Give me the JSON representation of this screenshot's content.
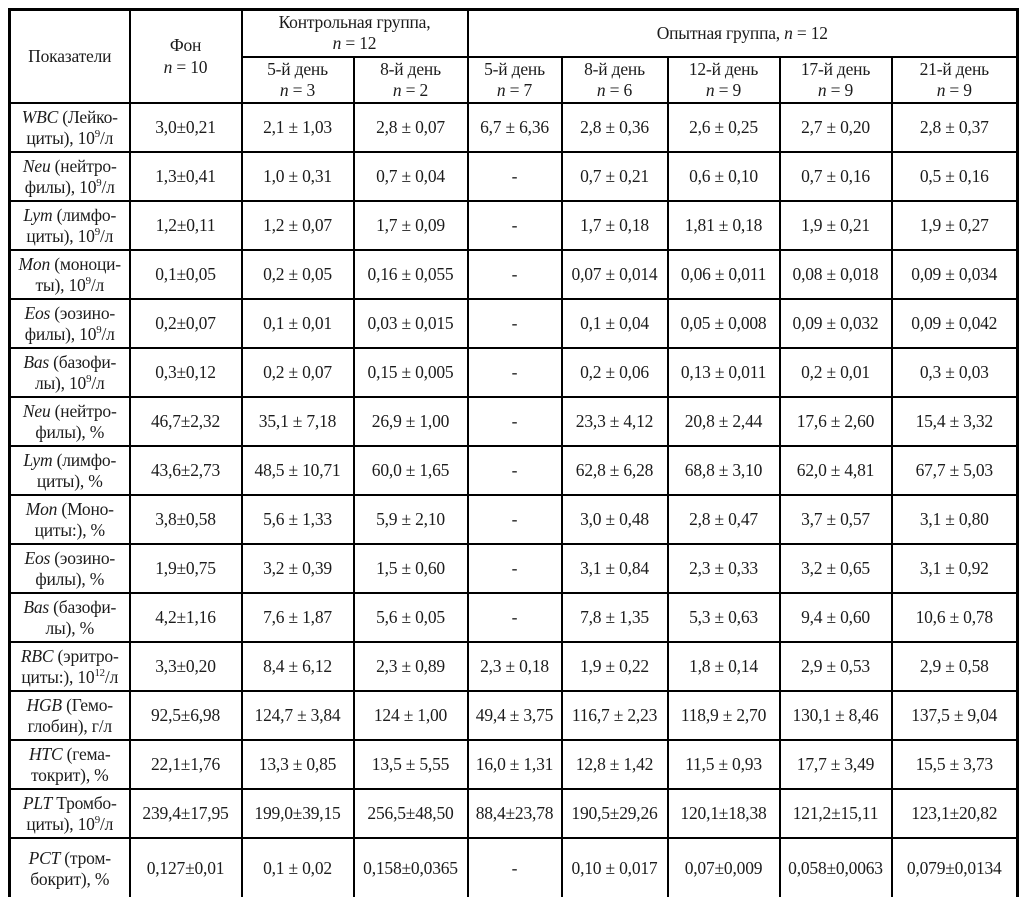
{
  "table": {
    "header": {
      "indicator_col": "Показатели",
      "fon_col": "Фон|{n} = 10",
      "control_group": "Контрольная группа,|{n} = 12",
      "experimental_group": "Опытная группа, {n} = 12",
      "control_subcols": [
        "5-й день|{n} = 3",
        "8-й день|{n} = 2"
      ],
      "experimental_subcols": [
        "5-й день|{n} = 7",
        "8-й день|{n} = 6",
        "12-й день|{n} = 9",
        "17-й день|{n} = 9",
        "21-й день|{n} = 9"
      ]
    },
    "rows": [
      {
        "label": "{WBC} (Лейко-|циты), 10^9^/л",
        "values": [
          "3,0±0,21",
          "2,1 ± 1,03",
          "2,8 ± 0,07",
          "6,7 ± 6,36",
          "2,8 ± 0,36",
          "2,6 ± 0,25",
          "2,7 ± 0,20",
          "2,8 ± 0,37"
        ]
      },
      {
        "label": "{Neu} (нейтро-|филы), 10^9^/л",
        "values": [
          "1,3±0,41",
          "1,0 ± 0,31",
          "0,7 ± 0,04",
          "-",
          "0,7 ± 0,21",
          "0,6 ± 0,10",
          "0,7 ± 0,16",
          "0,5 ± 0,16"
        ]
      },
      {
        "label": "{Lym} (лимфо-|циты), 10^9^/л",
        "values": [
          "1,2±0,11",
          "1,2 ± 0,07",
          "1,7 ± 0,09",
          "-",
          "1,7 ± 0,18",
          "1,81 ± 0,18",
          "1,9 ± 0,21",
          "1,9 ± 0,27"
        ]
      },
      {
        "label": "{Mon} (моноци-|ты), 10^9^/л",
        "values": [
          "0,1±0,05",
          "0,2 ± 0,05",
          "0,16 ± 0,055",
          "-",
          "0,07 ± 0,014",
          "0,06 ± 0,011",
          "0,08 ± 0,018",
          "0,09 ± 0,034"
        ]
      },
      {
        "label": "{Eos} (эозино-|филы), 10^9^/л",
        "values": [
          "0,2±0,07",
          "0,1 ± 0,01",
          "0,03 ± 0,015",
          "-",
          "0,1 ± 0,04",
          "0,05 ± 0,008",
          "0,09 ± 0,032",
          "0,09 ± 0,042"
        ]
      },
      {
        "label": "{Bas} (базофи-|лы), 10^9^/л",
        "values": [
          "0,3±0,12",
          "0,2 ± 0,07",
          "0,15 ± 0,005",
          "-",
          "0,2 ± 0,06",
          "0,13 ± 0,011",
          "0,2 ± 0,01",
          "0,3 ± 0,03"
        ]
      },
      {
        "label": "{Neu} (нейтро-|филы), %",
        "values": [
          "46,7±2,32",
          "35,1 ± 7,18",
          "26,9 ± 1,00",
          "-",
          "23,3 ± 4,12",
          "20,8 ± 2,44",
          "17,6 ± 2,60",
          "15,4 ± 3,32"
        ]
      },
      {
        "label": "{Lym} (лимфо-|циты), %",
        "values": [
          "43,6±2,73",
          "48,5 ± 10,71",
          "60,0 ± 1,65",
          "-",
          "62,8 ± 6,28",
          "68,8 ± 3,10",
          "62,0 ± 4,81",
          "67,7 ± 5,03"
        ]
      },
      {
        "label": "{Mon} (Моно-|циты:), %",
        "values": [
          "3,8±0,58",
          "5,6 ± 1,33",
          "5,9 ± 2,10",
          "-",
          "3,0 ± 0,48",
          "2,8 ± 0,47",
          "3,7 ± 0,57",
          "3,1 ± 0,80"
        ]
      },
      {
        "label": "{Eos} (эозино-|филы), %",
        "values": [
          "1,9±0,75",
          "3,2 ± 0,39",
          "1,5 ± 0,60",
          "-",
          "3,1 ± 0,84",
          "2,3 ± 0,33",
          "3,2 ± 0,65",
          "3,1 ± 0,92"
        ]
      },
      {
        "label": "{Bas} (базофи-|лы), %",
        "values": [
          "4,2±1,16",
          "7,6 ± 1,87",
          "5,6 ± 0,05",
          "-",
          "7,8 ± 1,35",
          "5,3 ± 0,63",
          "9,4 ± 0,60",
          "10,6 ± 0,78"
        ]
      },
      {
        "label": "{RBC} (эритро-|циты:), 10^12^/л",
        "values": [
          "3,3±0,20",
          "8,4 ± 6,12",
          "2,3 ± 0,89",
          "2,3 ± 0,18",
          "1,9 ± 0,22",
          "1,8 ± 0,14",
          "2,9 ± 0,53",
          "2,9 ± 0,58"
        ]
      },
      {
        "label": "{HGB} (Гемо-|глобин), г/л",
        "values": [
          "92,5±6,98",
          "124,7 ± 3,84",
          "124 ± 1,00",
          "49,4 ± 3,75",
          "116,7 ± 2,23",
          "118,9 ± 2,70",
          "130,1 ± 8,46",
          "137,5 ± 9,04"
        ]
      },
      {
        "label": "{HTC} (гема-|токрит), %",
        "values": [
          "22,1±1,76",
          "13,3 ± 0,85",
          "13,5 ± 5,55",
          "16,0 ± 1,31",
          "12,8 ± 1,42",
          "11,5 ± 0,93",
          "17,7 ± 3,49",
          "15,5 ± 3,73"
        ]
      },
      {
        "label": "{PLT} Тромбо-|циты), 10^9^/л",
        "values": [
          "239,4±17,95",
          "199,0±39,15",
          "256,5±48,50",
          "88,4±23,78",
          "190,5±29,26",
          "120,1±18,38",
          "121,2±15,11",
          "123,1±20,82"
        ]
      },
      {
        "label": "{PCT} (тром-|бокрит), %",
        "values": [
          "0,127±0,01",
          "0,1 ± 0,02",
          "0,158±0,0365",
          "-",
          "0,10 ± 0,017",
          "0,07±0,009",
          "0,058±0,0063",
          "0,079±0,0134"
        ]
      }
    ]
  },
  "colors": {
    "border": "#000000",
    "text": "#1c1c1c",
    "background": "#ffffff"
  }
}
